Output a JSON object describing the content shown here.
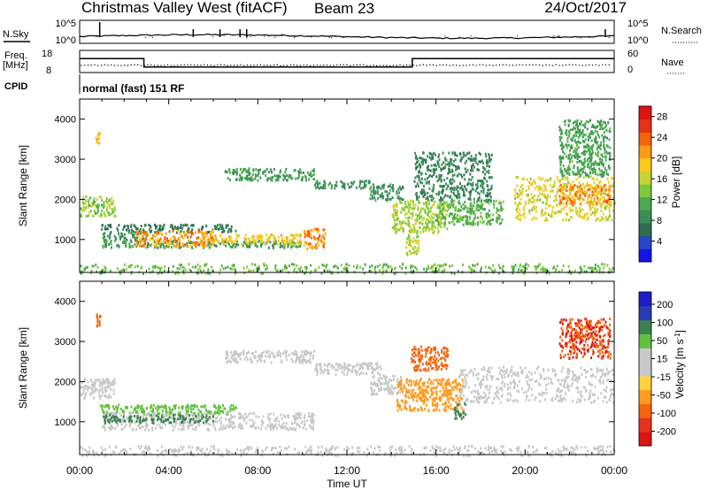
{
  "header": {
    "station": "Christmas Valley West (fitACF)",
    "beam": "Beam 23",
    "date": "24/Oct/2017"
  },
  "top_panels": {
    "nsky_label": "N.Sky",
    "nsearch_label": "N.Search",
    "noise_ticks": [
      "10^5",
      "10^0"
    ],
    "freq_label": "Freq.",
    "freq_unit": "[MHz]",
    "freq_ticks": [
      "18",
      "8"
    ],
    "nave_label": "Nave",
    "nave_ticks": [
      "60",
      "0"
    ],
    "cpid_label": "CPID",
    "cpid_text": "normal (fast) 151 RF"
  },
  "colors": {
    "power": [
      "#1414e6",
      "#2846c8",
      "#2e6e50",
      "#3c8c5a",
      "#4aa84e",
      "#7cc83c",
      "#c8d232",
      "#ffc81e",
      "#ff9a14",
      "#f5640a",
      "#e63214",
      "#dc1414"
    ],
    "velocity": [
      "#1e1ec8",
      "#2a3cb4",
      "#3a5a9a",
      "#3c8250",
      "#49a84a",
      "#8cd250",
      "#c8c8c8",
      "#c8c8c8",
      "#ffd23c",
      "#ff9a1e",
      "#f5640a",
      "#e6321e",
      "#dc1414"
    ],
    "background": "#ffffff"
  },
  "chart_data": [
    {
      "type": "line",
      "title": "N.Sky / N.Search",
      "y_scale": "log",
      "ylim": [
        1,
        100000
      ],
      "xlim": [
        "00:00",
        "24:00"
      ]
    },
    {
      "type": "line",
      "title": "Freq. / Nave",
      "ylabel_left": "Freq. [MHz]",
      "ylabel_right": "Nave",
      "ylim_left": [
        8,
        18
      ],
      "ylim_right": [
        0,
        60
      ],
      "freq_steps": [
        {
          "x": "00:00",
          "y": 14.3
        },
        {
          "x": "02:53",
          "y": 10.5
        },
        {
          "x": "14:56",
          "y": 14.3
        },
        {
          "x": "24:00",
          "y": 14.3
        }
      ],
      "nave_approx": 20
    },
    {
      "type": "heatmap",
      "ylabel": "Slant Range [km]",
      "yticks": [
        1000,
        2000,
        3000,
        4000
      ],
      "ylim": [
        180,
        4500
      ],
      "xticks": [
        "00:00",
        "04:00",
        "08:00",
        "12:00",
        "16:00",
        "20:00",
        "00:00"
      ],
      "xlabel": "Time UT",
      "colorbar": {
        "label": "Power [dB]",
        "ticks": [
          4,
          8,
          12,
          16,
          20,
          24,
          28
        ],
        "range": [
          0,
          30
        ]
      },
      "regions": [
        {
          "t": [
            0.0,
            1.6
          ],
          "r": [
            1600,
            2100
          ],
          "level": 14
        },
        {
          "t": [
            0.7,
            0.9
          ],
          "r": [
            3400,
            3700
          ],
          "level": 20
        },
        {
          "t": [
            0.9,
            7.0
          ],
          "r": [
            1200,
            1400
          ],
          "level": 7
        },
        {
          "t": [
            1.0,
            3.0
          ],
          "r": [
            1000,
            1200
          ],
          "level": 9
        },
        {
          "t": [
            1.0,
            10.0
          ],
          "r": [
            820,
            1000
          ],
          "level": 10
        },
        {
          "t": [
            2.5,
            6.0
          ],
          "r": [
            850,
            1250
          ],
          "level": 21
        },
        {
          "t": [
            6.0,
            10.0
          ],
          "r": [
            900,
            1150
          ],
          "level": 18
        },
        {
          "t": [
            10.0,
            11.0
          ],
          "r": [
            800,
            1300
          ],
          "level": 22
        },
        {
          "t": [
            6.5,
            10.5
          ],
          "r": [
            2500,
            2800
          ],
          "level": 10
        },
        {
          "t": [
            10.5,
            13.0
          ],
          "r": [
            2300,
            2500
          ],
          "level": 9
        },
        {
          "t": [
            13.0,
            14.5
          ],
          "r": [
            2000,
            2400
          ],
          "level": 9
        },
        {
          "t": [
            14.0,
            16.5
          ],
          "r": [
            1200,
            2000
          ],
          "level": 15
        },
        {
          "t": [
            14.6,
            15.2
          ],
          "r": [
            650,
            1300
          ],
          "level": 16
        },
        {
          "t": [
            16.0,
            19.0
          ],
          "r": [
            1400,
            2000
          ],
          "level": 12
        },
        {
          "t": [
            15.0,
            18.5
          ],
          "r": [
            2000,
            3200
          ],
          "level": 8
        },
        {
          "t": [
            19.5,
            24.0
          ],
          "r": [
            1500,
            2600
          ],
          "level": 17
        },
        {
          "t": [
            21.5,
            23.8
          ],
          "r": [
            1900,
            2400
          ],
          "level": 22
        },
        {
          "t": [
            21.5,
            23.8
          ],
          "r": [
            2600,
            4000
          ],
          "level": 11
        },
        {
          "t": [
            0.0,
            24.0
          ],
          "r": [
            180,
            420
          ],
          "level": 13
        }
      ]
    },
    {
      "type": "heatmap",
      "ylabel": "Slant Range [km]",
      "yticks": [
        1000,
        2000,
        3000,
        4000
      ],
      "ylim": [
        180,
        4500
      ],
      "xticks": [
        "00:00",
        "04:00",
        "08:00",
        "12:00",
        "16:00",
        "20:00",
        "00:00"
      ],
      "xlabel": "Time UT",
      "colorbar": {
        "label": "Velocity [m s^-1]",
        "ticks": [
          200,
          100,
          50,
          15,
          -15,
          -50,
          -100,
          -200
        ],
        "range": [
          -250,
          250
        ]
      },
      "regions": [
        {
          "t": [
            0.0,
            1.6
          ],
          "r": [
            1600,
            2100
          ],
          "level": 0
        },
        {
          "t": [
            0.7,
            0.9
          ],
          "r": [
            3400,
            3700
          ],
          "level": -180
        },
        {
          "t": [
            0.9,
            7.0
          ],
          "r": [
            1200,
            1450
          ],
          "level": 40
        },
        {
          "t": [
            1.0,
            10.5
          ],
          "r": [
            820,
            1250
          ],
          "level": 0
        },
        {
          "t": [
            1.0,
            6.0
          ],
          "r": [
            1000,
            1200
          ],
          "level": 60
        },
        {
          "t": [
            6.5,
            10.5
          ],
          "r": [
            2500,
            2800
          ],
          "level": 0
        },
        {
          "t": [
            10.5,
            13.5
          ],
          "r": [
            2200,
            2500
          ],
          "level": 0
        },
        {
          "t": [
            13.0,
            14.5
          ],
          "r": [
            1700,
            2200
          ],
          "level": 0
        },
        {
          "t": [
            14.2,
            17.2
          ],
          "r": [
            1300,
            2100
          ],
          "level": -70
        },
        {
          "t": [
            14.8,
            16.5
          ],
          "r": [
            2300,
            2900
          ],
          "level": -150
        },
        {
          "t": [
            16.8,
            17.3
          ],
          "r": [
            1100,
            1500
          ],
          "level": 60
        },
        {
          "t": [
            17.0,
            24.0
          ],
          "r": [
            1500,
            2400
          ],
          "level": 0
        },
        {
          "t": [
            21.5,
            23.8
          ],
          "r": [
            2600,
            3600
          ],
          "level": -200
        },
        {
          "t": [
            0.0,
            24.0
          ],
          "r": [
            180,
            420
          ],
          "level": 0
        }
      ]
    }
  ]
}
